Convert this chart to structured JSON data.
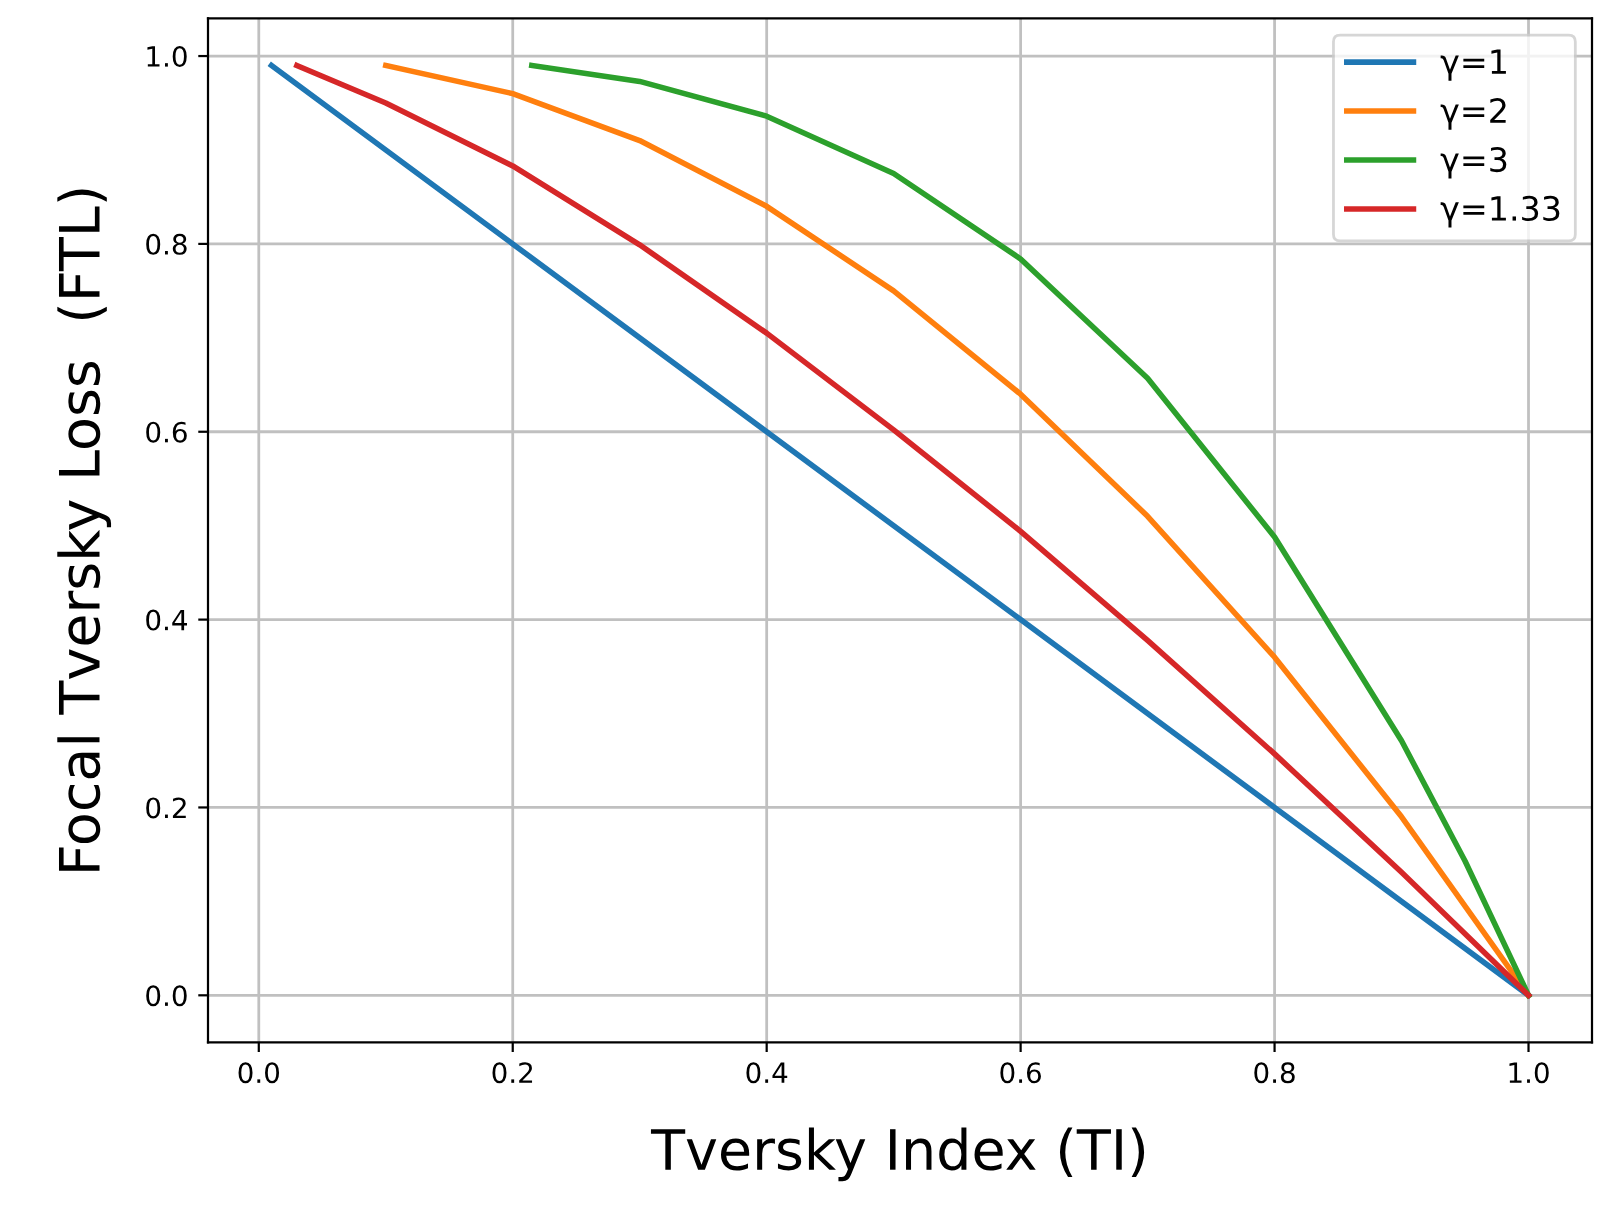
{
  "chart_data": {
    "type": "line",
    "xlabel": "Tversky Index (TI)",
    "ylabel": "Focal Tversky Loss  (FTL)",
    "xlim": [
      -0.04,
      1.05
    ],
    "ylim": [
      -0.05,
      1.04
    ],
    "xticks": [
      {
        "value": 0,
        "label": "0.0"
      },
      0.2,
      0.4,
      0.6,
      0.8,
      {
        "value": 1,
        "label": "1.0"
      }
    ],
    "yticks": [
      {
        "value": 0,
        "label": "0.0"
      },
      0.2,
      0.4,
      0.6,
      0.8,
      {
        "value": 1,
        "label": "1.0"
      }
    ],
    "grid": true,
    "legend": "top right",
    "series": [
      {
        "name": "γ=1",
        "color": "#1f77b4",
        "x": [
          0.01,
          0.2,
          0.4,
          0.6,
          0.8,
          1.0
        ],
        "values": [
          0.99,
          0.8,
          0.6,
          0.4,
          0.2,
          0.0
        ]
      },
      {
        "name": "γ=2",
        "color": "#ff7f0e",
        "x": [
          0.1,
          0.2,
          0.3,
          0.4,
          0.5,
          0.6,
          0.7,
          0.8,
          0.9,
          1.0
        ],
        "values": [
          0.99,
          0.96,
          0.91,
          0.84,
          0.75,
          0.64,
          0.51,
          0.36,
          0.19,
          0.0
        ]
      },
      {
        "name": "γ=3",
        "color": "#2ca02c",
        "x": [
          0.215,
          0.3,
          0.4,
          0.5,
          0.6,
          0.7,
          0.8,
          0.9,
          0.95,
          1.0
        ],
        "values": [
          0.99,
          0.973,
          0.936,
          0.875,
          0.784,
          0.657,
          0.488,
          0.271,
          0.143,
          0.0
        ]
      },
      {
        "name": "γ=1.33",
        "color": "#d62728",
        "x": [
          0.03,
          0.1,
          0.2,
          0.3,
          0.4,
          0.5,
          0.6,
          0.7,
          0.8,
          0.9,
          1.0
        ],
        "values": [
          0.99,
          0.95,
          0.883,
          0.799,
          0.705,
          0.602,
          0.494,
          0.378,
          0.257,
          0.131,
          0.0
        ]
      }
    ]
  }
}
